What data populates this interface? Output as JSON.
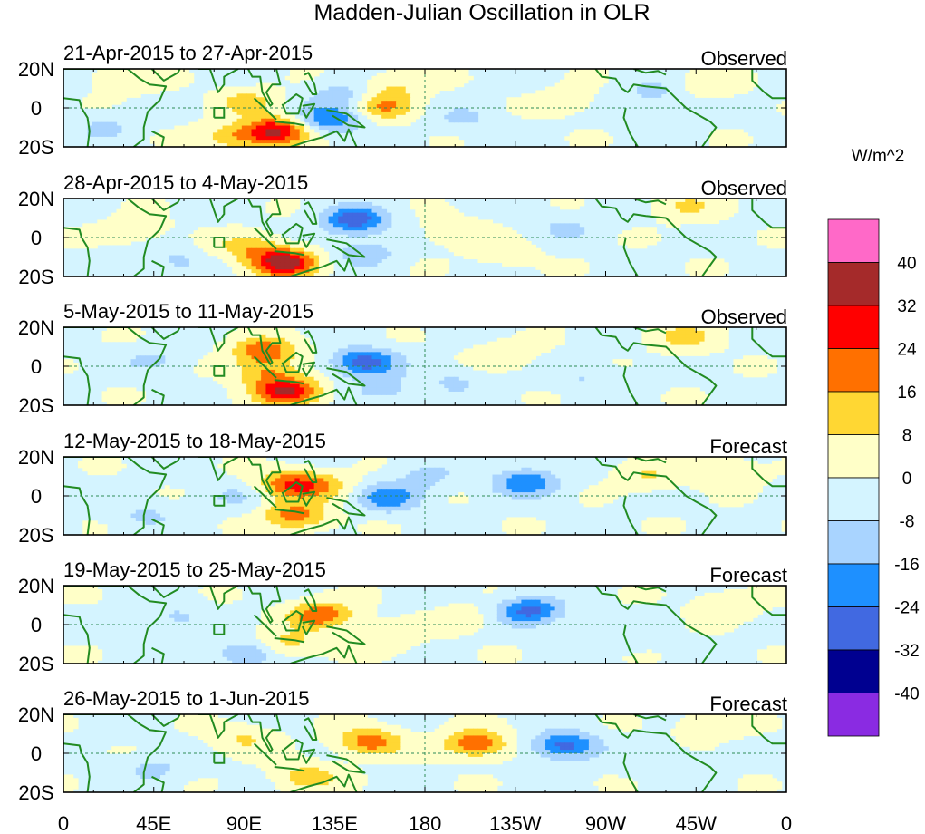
{
  "chart_data": {
    "type": "heatmap",
    "title": "Madden-Julian Oscillation in OLR",
    "units": "W/m^2",
    "x_tick_labels": [
      "0",
      "45E",
      "90E",
      "135E",
      "180",
      "135W",
      "90W",
      "45W",
      "0"
    ],
    "x_tick_degrees": [
      0,
      45,
      90,
      135,
      180,
      225,
      270,
      315,
      360
    ],
    "y_tick_labels": [
      "20N",
      "0",
      "20S"
    ],
    "y_tick_degrees": [
      20,
      0,
      -20
    ],
    "xlim": [
      0,
      360
    ],
    "ylim": [
      -20,
      20
    ],
    "colorbar": {
      "labels": [
        "40",
        "32",
        "24",
        "16",
        "8",
        "0",
        "-8",
        "-16",
        "-24",
        "-32",
        "-40"
      ],
      "colors": [
        "#ff69c8",
        "#a52a2a",
        "#ff0000",
        "#ff7000",
        "#ffd733",
        "#ffffc8",
        "#d4f4ff",
        "#a9d4ff",
        "#1e90ff",
        "#4169e1",
        "#000090",
        "#8a2be2"
      ]
    },
    "panels": [
      {
        "period": "21-Apr-2015 to 27-Apr-2015",
        "status": "Observed",
        "features": [
          {
            "lon": 106,
            "lat": -12,
            "value": 34
          },
          {
            "lon": 92,
            "lat": 3,
            "value": 12
          },
          {
            "lon": 84,
            "lat": -15,
            "value": 14
          },
          {
            "lon": 132,
            "lat": -6,
            "value": -22
          },
          {
            "lon": 138,
            "lat": 6,
            "value": -12
          },
          {
            "lon": 160,
            "lat": 1,
            "value": 18
          },
          {
            "lon": 165,
            "lat": 12,
            "value": 9
          },
          {
            "lon": 30,
            "lat": 15,
            "value": 9
          },
          {
            "lon": 250,
            "lat": 3,
            "value": 6
          },
          {
            "lon": 295,
            "lat": 8,
            "value": -9
          },
          {
            "lon": 320,
            "lat": 12,
            "value": 7
          },
          {
            "lon": 20,
            "lat": -10,
            "value": -8
          },
          {
            "lon": 200,
            "lat": -5,
            "value": -8
          }
        ]
      },
      {
        "period": "28-Apr-2015 to 4-May-2015",
        "status": "Observed",
        "features": [
          {
            "lon": 110,
            "lat": -13,
            "value": 38
          },
          {
            "lon": 92,
            "lat": -5,
            "value": 14
          },
          {
            "lon": 145,
            "lat": 9,
            "value": -28
          },
          {
            "lon": 150,
            "lat": -8,
            "value": -12
          },
          {
            "lon": 35,
            "lat": 4,
            "value": 7
          },
          {
            "lon": 195,
            "lat": 3,
            "value": 8
          },
          {
            "lon": 310,
            "lat": 16,
            "value": 10
          },
          {
            "lon": 55,
            "lat": -12,
            "value": -8
          },
          {
            "lon": 250,
            "lat": 5,
            "value": -8
          },
          {
            "lon": 220,
            "lat": -8,
            "value": 6
          }
        ]
      },
      {
        "period": "5-May-2015 to 11-May-2015",
        "status": "Observed",
        "features": [
          {
            "lon": 112,
            "lat": -13,
            "value": 34
          },
          {
            "lon": 100,
            "lat": 8,
            "value": 22
          },
          {
            "lon": 100,
            "lat": -3,
            "value": 15
          },
          {
            "lon": 150,
            "lat": 2,
            "value": -28
          },
          {
            "lon": 160,
            "lat": -12,
            "value": -10
          },
          {
            "lon": 220,
            "lat": 6,
            "value": 7
          },
          {
            "lon": 310,
            "lat": 15,
            "value": 12
          },
          {
            "lon": 45,
            "lat": 3,
            "value": -8
          },
          {
            "lon": 195,
            "lat": -8,
            "value": -8
          },
          {
            "lon": 260,
            "lat": -6,
            "value": -7
          }
        ]
      },
      {
        "period": "12-May-2015 to 18-May-2015",
        "status": "Forecast",
        "features": [
          {
            "lon": 113,
            "lat": 6,
            "value": 24
          },
          {
            "lon": 116,
            "lat": -10,
            "value": 22
          },
          {
            "lon": 130,
            "lat": 5,
            "value": 12
          },
          {
            "lon": 162,
            "lat": -1,
            "value": -20
          },
          {
            "lon": 230,
            "lat": 7,
            "value": -22
          },
          {
            "lon": 180,
            "lat": 10,
            "value": -9
          },
          {
            "lon": 290,
            "lat": 10,
            "value": 9
          },
          {
            "lon": 330,
            "lat": 12,
            "value": 10
          },
          {
            "lon": 40,
            "lat": -10,
            "value": -8
          },
          {
            "lon": 85,
            "lat": 0,
            "value": -7
          }
        ]
      },
      {
        "period": "19-May-2015 to 25-May-2015",
        "status": "Forecast",
        "features": [
          {
            "lon": 128,
            "lat": 5,
            "value": 24
          },
          {
            "lon": 112,
            "lat": -10,
            "value": 12
          },
          {
            "lon": 232,
            "lat": 7,
            "value": -26
          },
          {
            "lon": 90,
            "lat": -15,
            "value": -14
          },
          {
            "lon": 160,
            "lat": -6,
            "value": 9
          },
          {
            "lon": 200,
            "lat": 3,
            "value": 6
          },
          {
            "lon": 330,
            "lat": 10,
            "value": 9
          },
          {
            "lon": 55,
            "lat": 4,
            "value": -8
          },
          {
            "lon": 275,
            "lat": -6,
            "value": -6
          }
        ]
      },
      {
        "period": "26-May-2015 to 1-Jun-2015",
        "status": "Forecast",
        "features": [
          {
            "lon": 153,
            "lat": 6,
            "value": 22
          },
          {
            "lon": 205,
            "lat": 5,
            "value": 24
          },
          {
            "lon": 122,
            "lat": -12,
            "value": 14
          },
          {
            "lon": 90,
            "lat": 7,
            "value": 10
          },
          {
            "lon": 250,
            "lat": 4,
            "value": -26
          },
          {
            "lon": 45,
            "lat": -8,
            "value": -9
          },
          {
            "lon": 300,
            "lat": -5,
            "value": -7
          },
          {
            "lon": 320,
            "lat": 14,
            "value": 8
          }
        ]
      }
    ]
  }
}
